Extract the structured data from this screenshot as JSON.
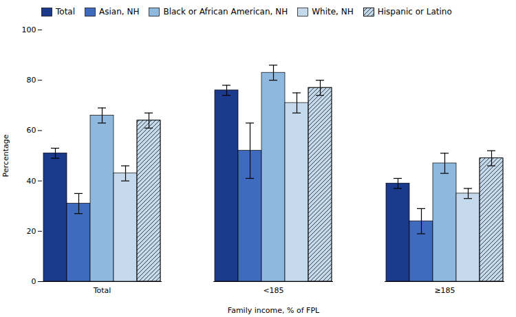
{
  "chart_data": {
    "type": "bar",
    "categories": [
      "Total",
      "<185",
      "≥185"
    ],
    "series": [
      {
        "name": "Total",
        "color": "#1b3a8c",
        "values": [
          51,
          76,
          39
        ],
        "errors": [
          2,
          2,
          2
        ]
      },
      {
        "name": "Asian, NH",
        "color": "#3f6bbf",
        "values": [
          31,
          52,
          24
        ],
        "errors": [
          4,
          11,
          5
        ]
      },
      {
        "name": "Black or African American, NH",
        "color": "#8fb8de",
        "values": [
          66,
          83,
          47
        ],
        "errors": [
          3,
          3,
          4
        ]
      },
      {
        "name": "White, NH",
        "color": "#c5d9ed",
        "values": [
          43,
          71,
          35
        ],
        "errors": [
          3,
          4,
          2
        ]
      },
      {
        "name": "Hispanic or Latino",
        "color": "#c5d9ed",
        "values": [
          64,
          77,
          49
        ],
        "errors": [
          3,
          3,
          3
        ]
      }
    ],
    "xlabel": "Family income, % of FPL",
    "ylabel": "Percentage",
    "ylim": [
      0,
      100
    ],
    "yticks": [
      0,
      20,
      40,
      60,
      80,
      100
    ],
    "grid": false,
    "legend": "upper left"
  }
}
